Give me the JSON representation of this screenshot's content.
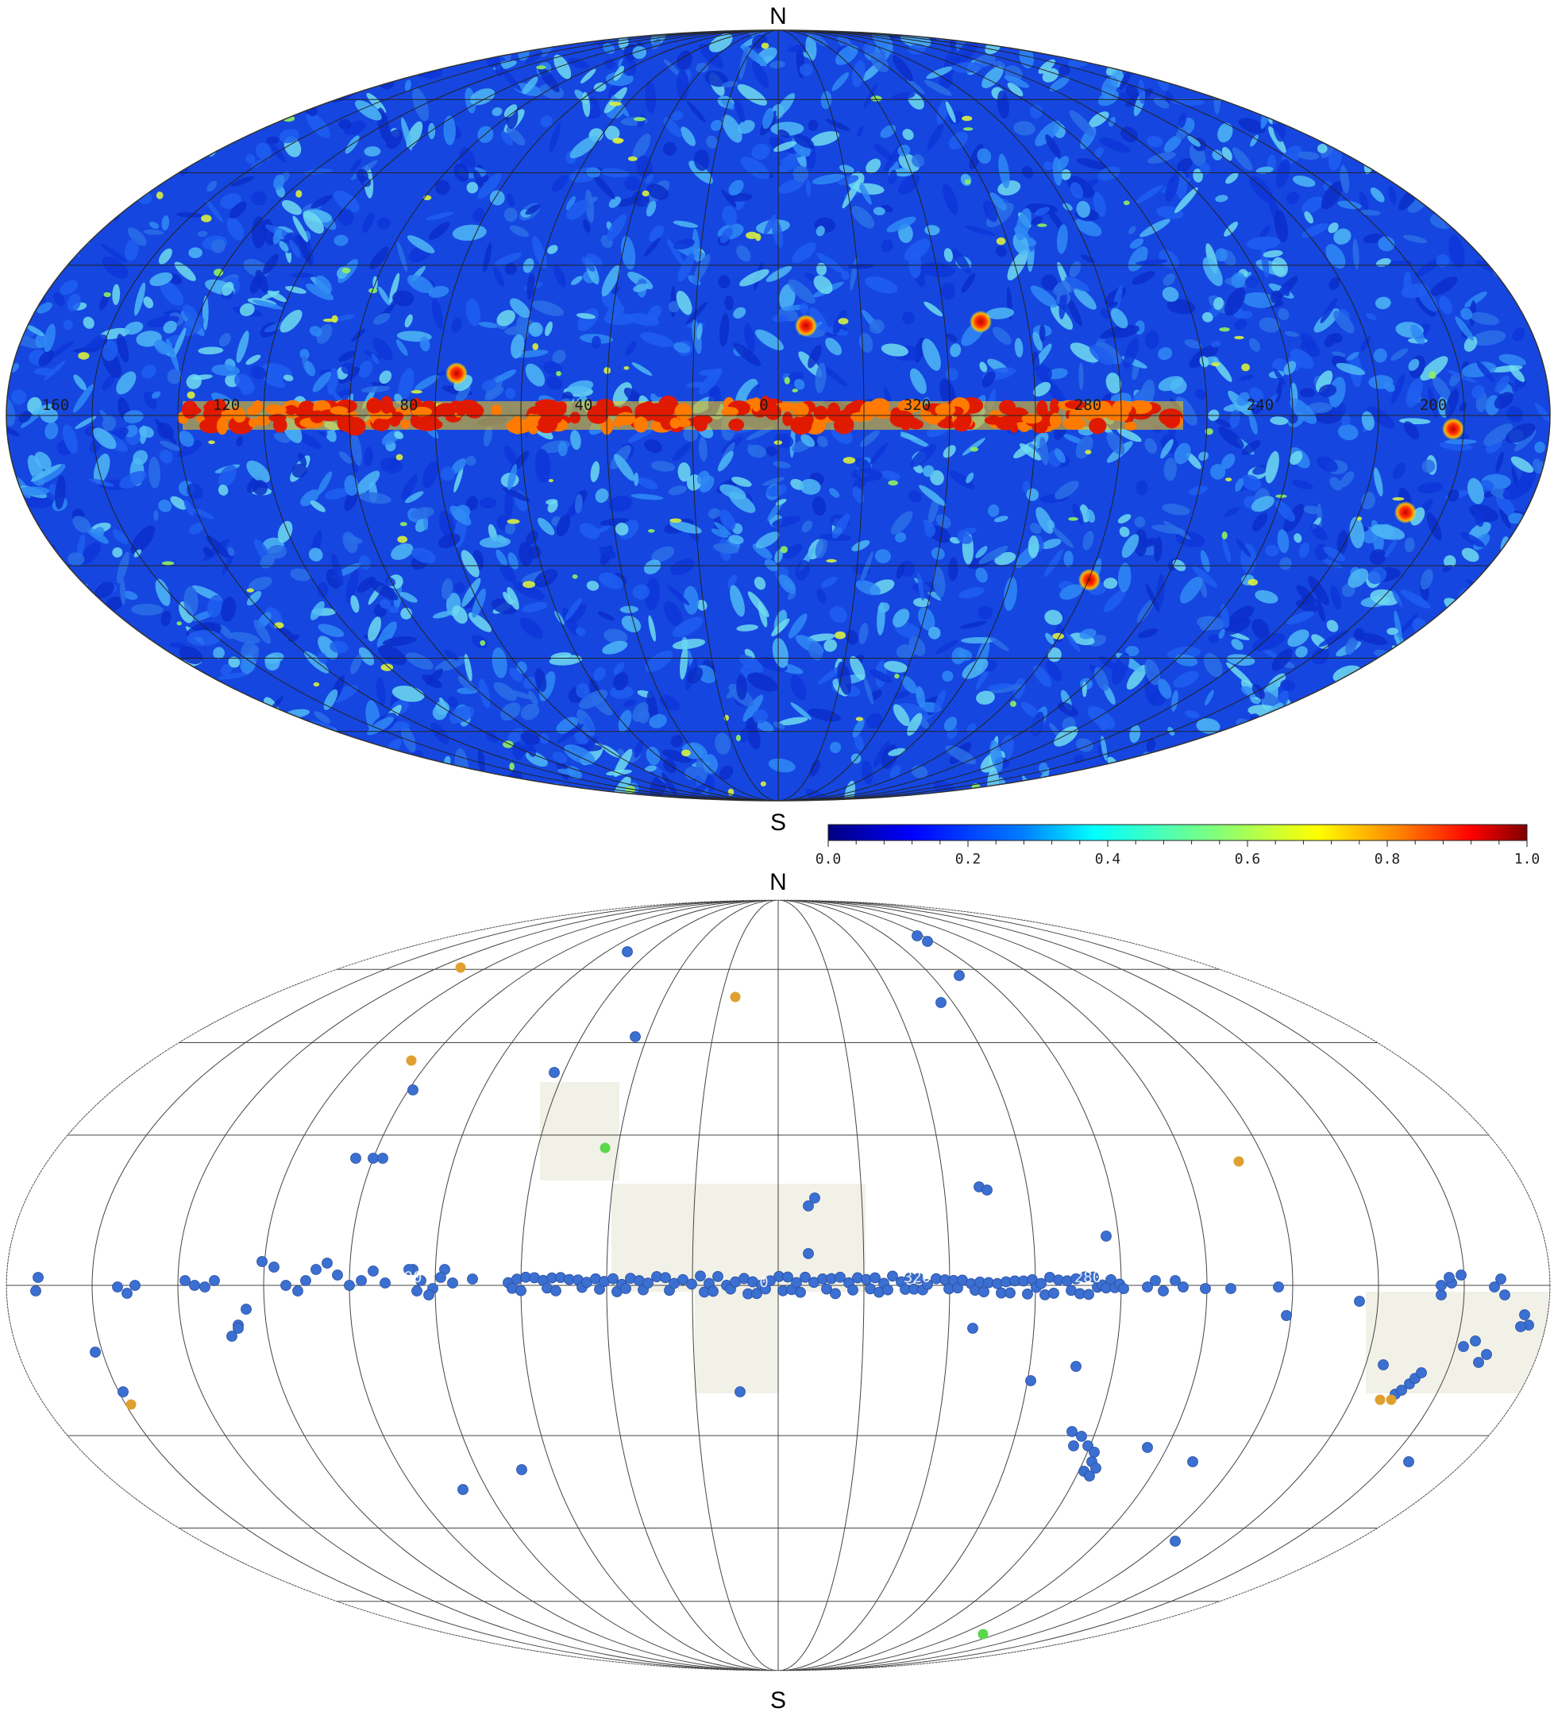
{
  "top_map": {
    "north_label": "N",
    "south_label": "S",
    "longitude_labels": [
      "160",
      "120",
      "80",
      "40",
      "0",
      "320",
      "280",
      "240",
      "200"
    ],
    "colorbar": {
      "ticks": [
        "0.0",
        "0.2",
        "0.4",
        "0.6",
        "0.8",
        "1.0"
      ],
      "colors": [
        "#00007f",
        "#0000ff",
        "#007fff",
        "#00ffff",
        "#7fff7f",
        "#ffff00",
        "#ff7f00",
        "#ff0000",
        "#7f0000"
      ]
    }
  },
  "bottom_map": {
    "north_label": "N",
    "south_label": "S",
    "longitude_labels": [
      "80",
      "0",
      "320",
      "280"
    ],
    "marker_colors": {
      "blue": "#3b6fd1",
      "orange": "#e0a030",
      "green": "#5ad84a",
      "shade": "#f2f1e8"
    }
  }
}
